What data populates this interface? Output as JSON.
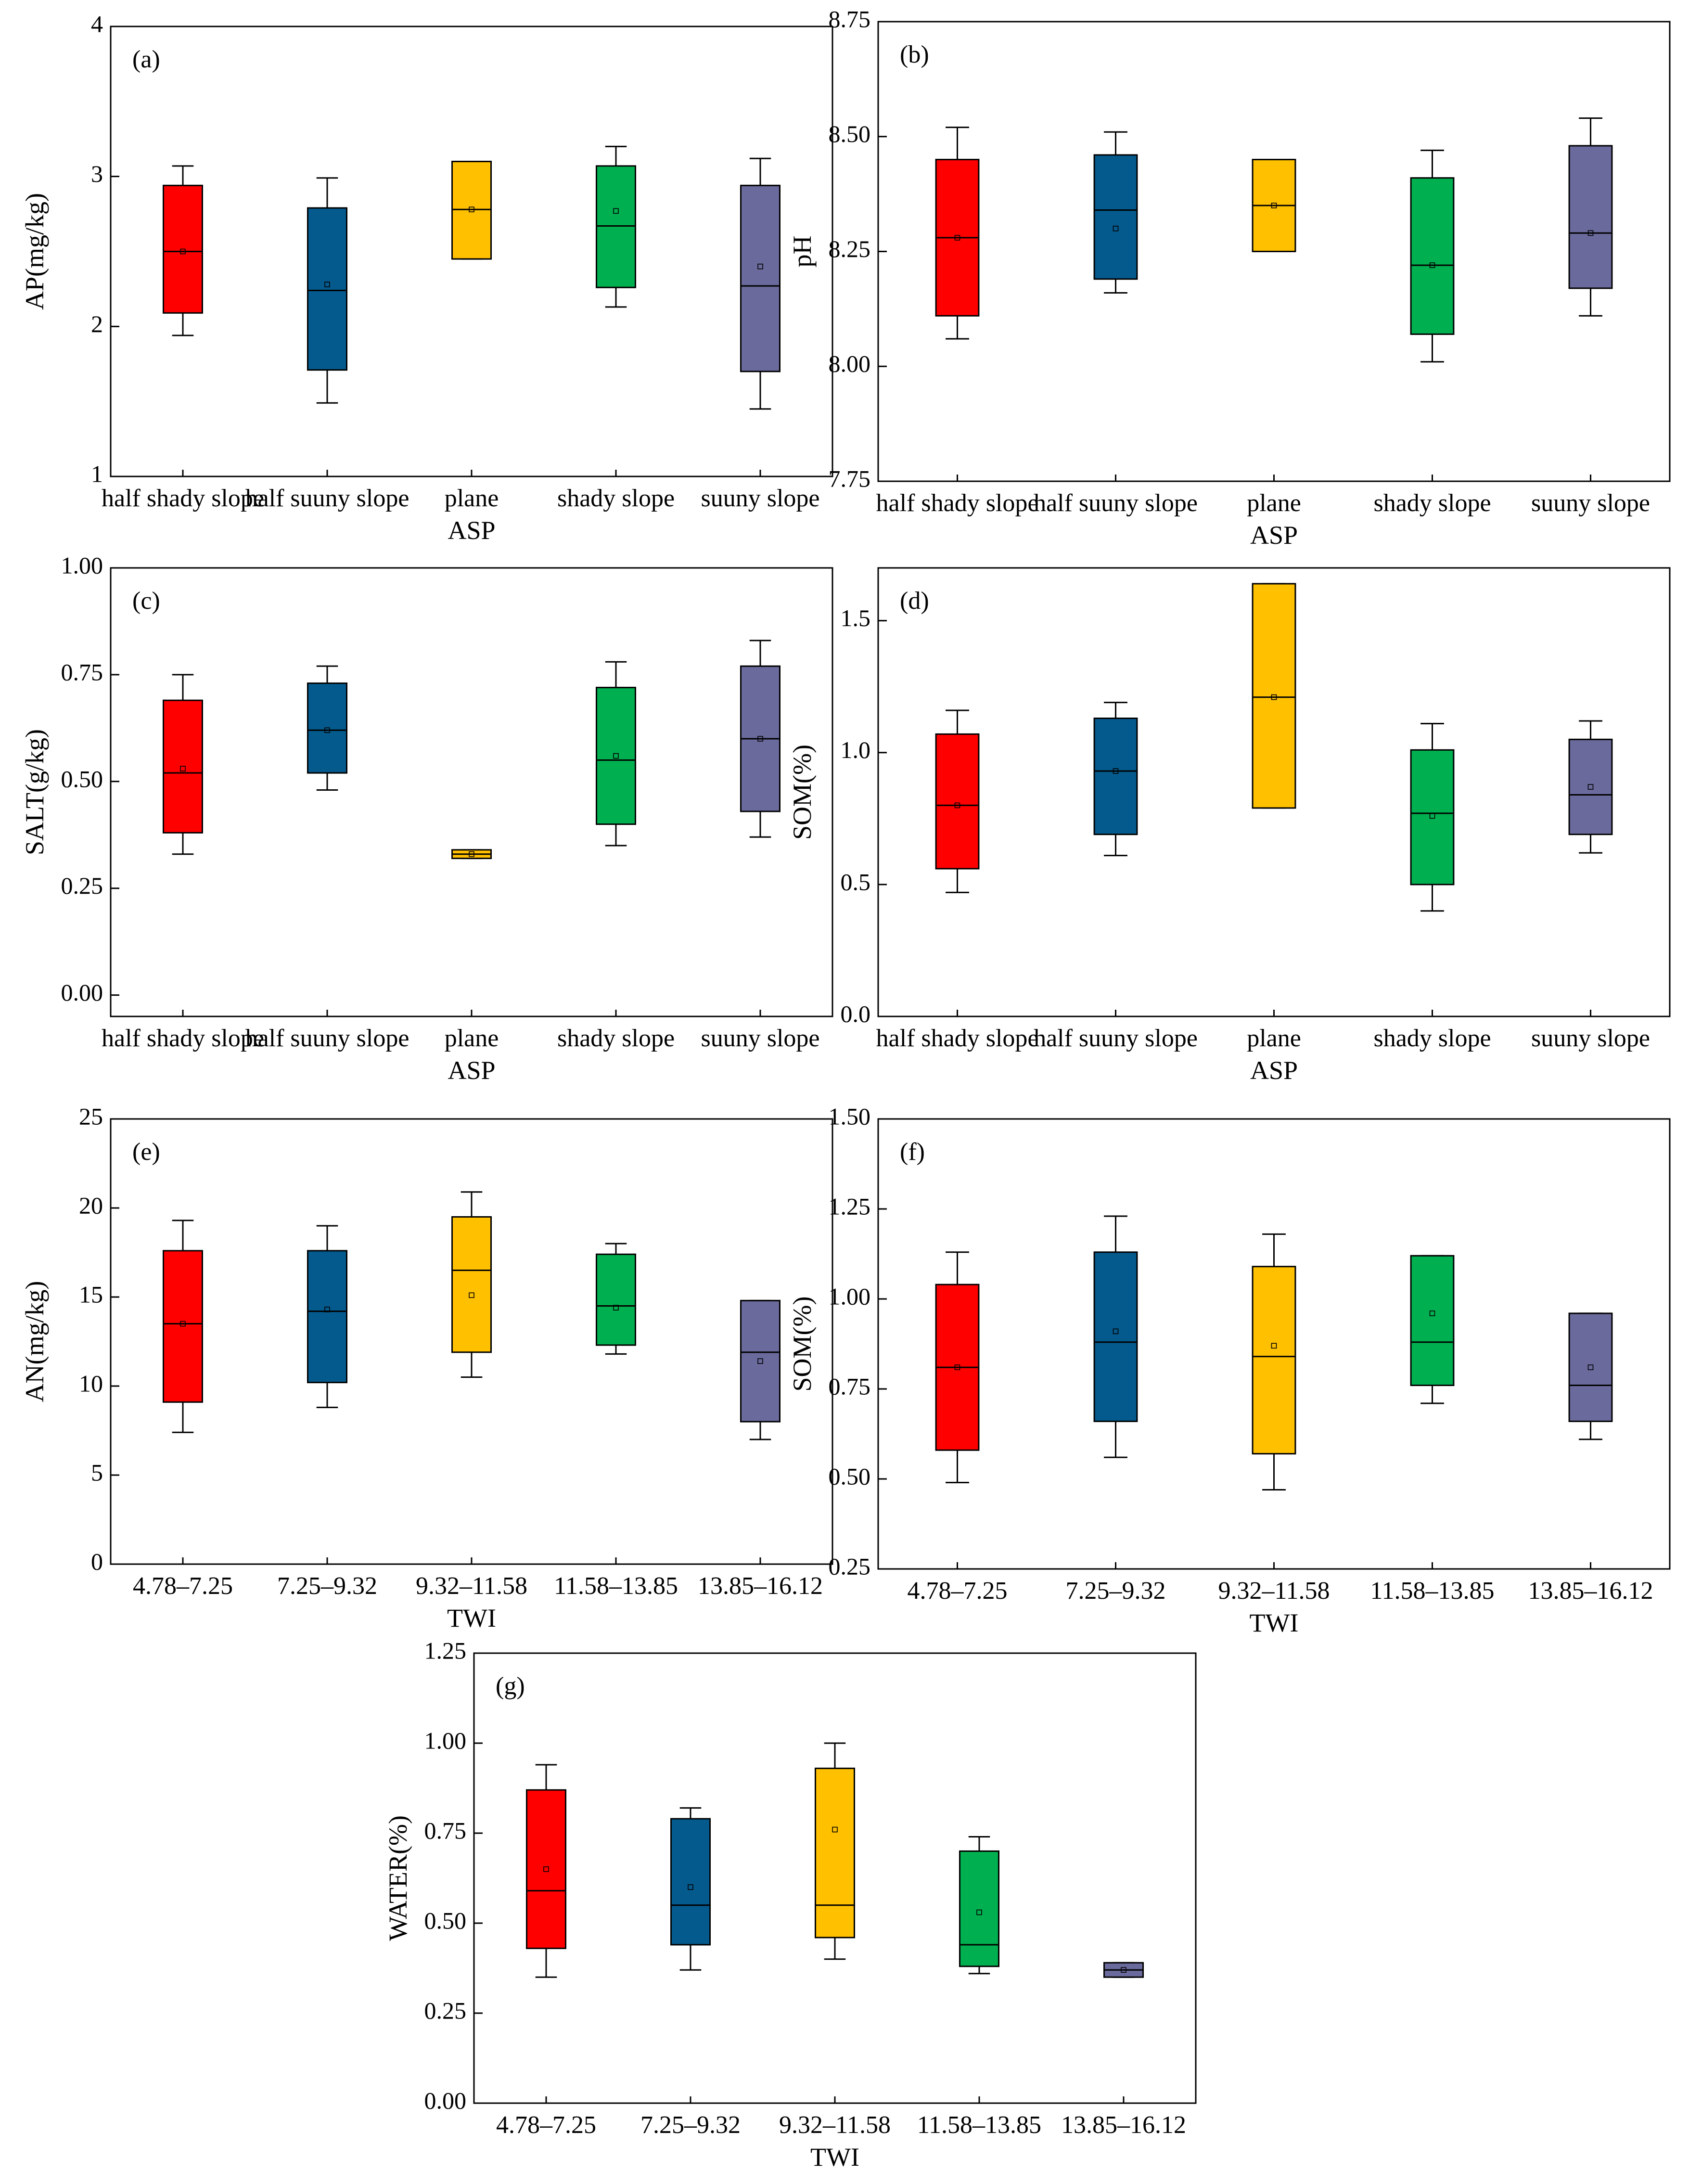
{
  "colors": [
    "#ff0000",
    "#045a8d",
    "#ffc000",
    "#00b050",
    "#6a6a9c"
  ],
  "chart_data": [
    {
      "id": "a",
      "type": "box",
      "tag": "(a)",
      "xlabel": "ASP",
      "ylabel": "AP(mg/kg)",
      "categories": [
        "half shady slope",
        "half suuny slope",
        "plane",
        "shady slope",
        "suuny slope"
      ],
      "ylim": [
        1,
        4
      ],
      "yticks": [
        "1",
        "2",
        "3",
        "4"
      ],
      "boxes": [
        {
          "min": 1.94,
          "q1": 2.09,
          "median": 2.5,
          "q3": 2.94,
          "max": 3.07,
          "mean": 2.5
        },
        {
          "min": 1.49,
          "q1": 1.71,
          "median": 2.24,
          "q3": 2.79,
          "max": 2.99,
          "mean": 2.28
        },
        {
          "min": 2.45,
          "q1": 2.45,
          "median": 2.78,
          "q3": 3.1,
          "max": 3.1,
          "mean": 2.78
        },
        {
          "min": 2.13,
          "q1": 2.26,
          "median": 2.67,
          "q3": 3.07,
          "max": 3.2,
          "mean": 2.77
        },
        {
          "min": 1.45,
          "q1": 1.7,
          "median": 2.27,
          "q3": 2.94,
          "max": 3.12,
          "mean": 2.4
        }
      ]
    },
    {
      "id": "b",
      "type": "box",
      "tag": "(b)",
      "xlabel": "ASP",
      "ylabel": "pH",
      "categories": [
        "half shady slope",
        "half suuny slope",
        "plane",
        "shady slope",
        "suuny slope"
      ],
      "ylim": [
        7.75,
        8.75
      ],
      "yticks": [
        "7.75",
        "8.00",
        "8.25",
        "8.50",
        "8.75"
      ],
      "boxes": [
        {
          "min": 8.06,
          "q1": 8.11,
          "median": 8.28,
          "q3": 8.45,
          "max": 8.52,
          "mean": 8.28
        },
        {
          "min": 8.16,
          "q1": 8.19,
          "median": 8.34,
          "q3": 8.46,
          "max": 8.51,
          "mean": 8.3
        },
        {
          "min": 8.25,
          "q1": 8.25,
          "median": 8.35,
          "q3": 8.45,
          "max": 8.45,
          "mean": 8.35
        },
        {
          "min": 8.01,
          "q1": 8.07,
          "median": 8.22,
          "q3": 8.41,
          "max": 8.47,
          "mean": 8.22
        },
        {
          "min": 8.11,
          "q1": 8.17,
          "median": 8.29,
          "q3": 8.48,
          "max": 8.54,
          "mean": 8.29
        }
      ]
    },
    {
      "id": "c",
      "type": "box",
      "tag": "(c)",
      "xlabel": "ASP",
      "ylabel": "SALT(g/kg)",
      "categories": [
        "half shady slope",
        "half suuny slope",
        "plane",
        "shady slope",
        "suuny slope"
      ],
      "ylim": [
        -0.05,
        1.0
      ],
      "yticks": [
        "0.00",
        "0.25",
        "0.50",
        "0.75",
        "1.00"
      ],
      "boxes": [
        {
          "min": 0.33,
          "q1": 0.38,
          "median": 0.52,
          "q3": 0.69,
          "max": 0.75,
          "mean": 0.53
        },
        {
          "min": 0.48,
          "q1": 0.52,
          "median": 0.62,
          "q3": 0.73,
          "max": 0.77,
          "mean": 0.62
        },
        {
          "min": 0.32,
          "q1": 0.32,
          "median": 0.33,
          "q3": 0.34,
          "max": 0.34,
          "mean": 0.33
        },
        {
          "min": 0.35,
          "q1": 0.4,
          "median": 0.55,
          "q3": 0.72,
          "max": 0.78,
          "mean": 0.56
        },
        {
          "min": 0.37,
          "q1": 0.43,
          "median": 0.6,
          "q3": 0.77,
          "max": 0.83,
          "mean": 0.6
        }
      ]
    },
    {
      "id": "d",
      "type": "box",
      "tag": "(d)",
      "xlabel": "ASP",
      "ylabel": "SOM(%)",
      "categories": [
        "half shady slope",
        "half suuny slope",
        "plane",
        "shady slope",
        "suuny slope"
      ],
      "ylim": [
        0,
        1.7
      ],
      "yticks": [
        "0.0",
        "0.5",
        "1.0",
        "1.5"
      ],
      "boxes": [
        {
          "min": 0.47,
          "q1": 0.56,
          "median": 0.8,
          "q3": 1.07,
          "max": 1.16,
          "mean": 0.8
        },
        {
          "min": 0.61,
          "q1": 0.69,
          "median": 0.93,
          "q3": 1.13,
          "max": 1.19,
          "mean": 0.93
        },
        {
          "min": 0.79,
          "q1": 0.79,
          "median": 1.21,
          "q3": 1.64,
          "max": 1.64,
          "mean": 1.21
        },
        {
          "min": 0.4,
          "q1": 0.5,
          "median": 0.77,
          "q3": 1.01,
          "max": 1.11,
          "mean": 0.76
        },
        {
          "min": 0.62,
          "q1": 0.69,
          "median": 0.84,
          "q3": 1.05,
          "max": 1.12,
          "mean": 0.87
        }
      ]
    },
    {
      "id": "e",
      "type": "box",
      "tag": "(e)",
      "xlabel": "TWI",
      "ylabel": "AN(mg/kg)",
      "categories": [
        "4.78–7.25",
        "7.25–9.32",
        "9.32–11.58",
        "11.58–13.85",
        "13.85–16.12"
      ],
      "ylim": [
        0,
        25
      ],
      "yticks": [
        "0",
        "5",
        "10",
        "15",
        "20",
        "25"
      ],
      "boxes": [
        {
          "min": 7.4,
          "q1": 9.1,
          "median": 13.5,
          "q3": 17.6,
          "max": 19.3,
          "mean": 13.5
        },
        {
          "min": 8.8,
          "q1": 10.2,
          "median": 14.2,
          "q3": 17.6,
          "max": 19.0,
          "mean": 14.3
        },
        {
          "min": 10.5,
          "q1": 11.9,
          "median": 16.5,
          "q3": 19.5,
          "max": 20.9,
          "mean": 15.1
        },
        {
          "min": 11.8,
          "q1": 12.3,
          "median": 14.5,
          "q3": 17.4,
          "max": 18.0,
          "mean": 14.4
        },
        {
          "min": 7.0,
          "q1": 8.0,
          "median": 11.9,
          "q3": 14.8,
          "max": 14.8,
          "mean": 11.4
        }
      ]
    },
    {
      "id": "f",
      "type": "box",
      "tag": "(f)",
      "xlabel": "TWI",
      "ylabel": "SOM(%)",
      "categories": [
        "4.78–7.25",
        "7.25–9.32",
        "9.32–11.58",
        "11.58–13.85",
        "13.85–16.12"
      ],
      "ylim": [
        0.25,
        1.5
      ],
      "yticks": [
        "0.25",
        "0.50",
        "0.75",
        "1.00",
        "1.25",
        "1.50"
      ],
      "boxes": [
        {
          "min": 0.49,
          "q1": 0.58,
          "median": 0.81,
          "q3": 1.04,
          "max": 1.13,
          "mean": 0.81
        },
        {
          "min": 0.56,
          "q1": 0.66,
          "median": 0.88,
          "q3": 1.13,
          "max": 1.23,
          "mean": 0.91
        },
        {
          "min": 0.47,
          "q1": 0.57,
          "median": 0.84,
          "q3": 1.09,
          "max": 1.18,
          "mean": 0.87
        },
        {
          "min": 0.71,
          "q1": 0.76,
          "median": 0.88,
          "q3": 1.12,
          "max": 1.12,
          "mean": 0.96
        },
        {
          "min": 0.61,
          "q1": 0.66,
          "median": 0.76,
          "q3": 0.96,
          "max": 0.96,
          "mean": 0.81
        }
      ]
    },
    {
      "id": "g",
      "type": "box",
      "tag": "(g)",
      "xlabel": "TWI",
      "ylabel": "WATER(%)",
      "categories": [
        "4.78–7.25",
        "7.25–9.32",
        "9.32–11.58",
        "11.58–13.85",
        "13.85–16.12"
      ],
      "ylim": [
        0,
        1.25
      ],
      "yticks": [
        "0.00",
        "0.25",
        "0.50",
        "0.75",
        "1.00",
        "1.25"
      ],
      "boxes": [
        {
          "min": 0.35,
          "q1": 0.43,
          "median": 0.59,
          "q3": 0.87,
          "max": 0.94,
          "mean": 0.65
        },
        {
          "min": 0.37,
          "q1": 0.44,
          "median": 0.55,
          "q3": 0.79,
          "max": 0.82,
          "mean": 0.6
        },
        {
          "min": 0.4,
          "q1": 0.46,
          "median": 0.55,
          "q3": 0.93,
          "max": 1.0,
          "mean": 0.76
        },
        {
          "min": 0.36,
          "q1": 0.38,
          "median": 0.44,
          "q3": 0.7,
          "max": 0.74,
          "mean": 0.53
        },
        {
          "min": 0.35,
          "q1": 0.35,
          "median": 0.37,
          "q3": 0.39,
          "max": 0.39,
          "mean": 0.37
        }
      ]
    }
  ]
}
